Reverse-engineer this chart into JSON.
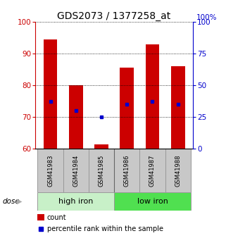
{
  "title": "GDS2073 / 1377258_at",
  "samples": [
    "GSM41983",
    "GSM41984",
    "GSM41985",
    "GSM41986",
    "GSM41987",
    "GSM41988"
  ],
  "red_bar_tops": [
    94.5,
    80.0,
    61.5,
    85.5,
    93.0,
    86.0
  ],
  "blue_sq_vals": [
    75.0,
    72.0,
    70.0,
    74.0,
    75.0,
    74.0
  ],
  "bar_bottom": 60,
  "ylim": [
    60,
    100
  ],
  "yticks_left": [
    60,
    70,
    80,
    90,
    100
  ],
  "yticks_right": [
    0,
    25,
    50,
    75,
    100
  ],
  "groups": [
    {
      "label": "high iron",
      "indices": [
        0,
        1,
        2
      ],
      "color": "#c8f0c8"
    },
    {
      "label": "low iron",
      "indices": [
        3,
        4,
        5
      ],
      "color": "#50e050"
    }
  ],
  "dose_label": "dose",
  "legend_count": "count",
  "legend_pct": "percentile rank within the sample",
  "bar_color": "#cc0000",
  "sq_color": "#0000cc",
  "left_color": "#cc0000",
  "right_color": "#0000cc",
  "bg_sample_label": "#c8c8c8",
  "title_fontsize": 10,
  "tick_fontsize": 7.5,
  "sample_fontsize": 6,
  "group_fontsize": 8,
  "legend_fontsize": 7
}
